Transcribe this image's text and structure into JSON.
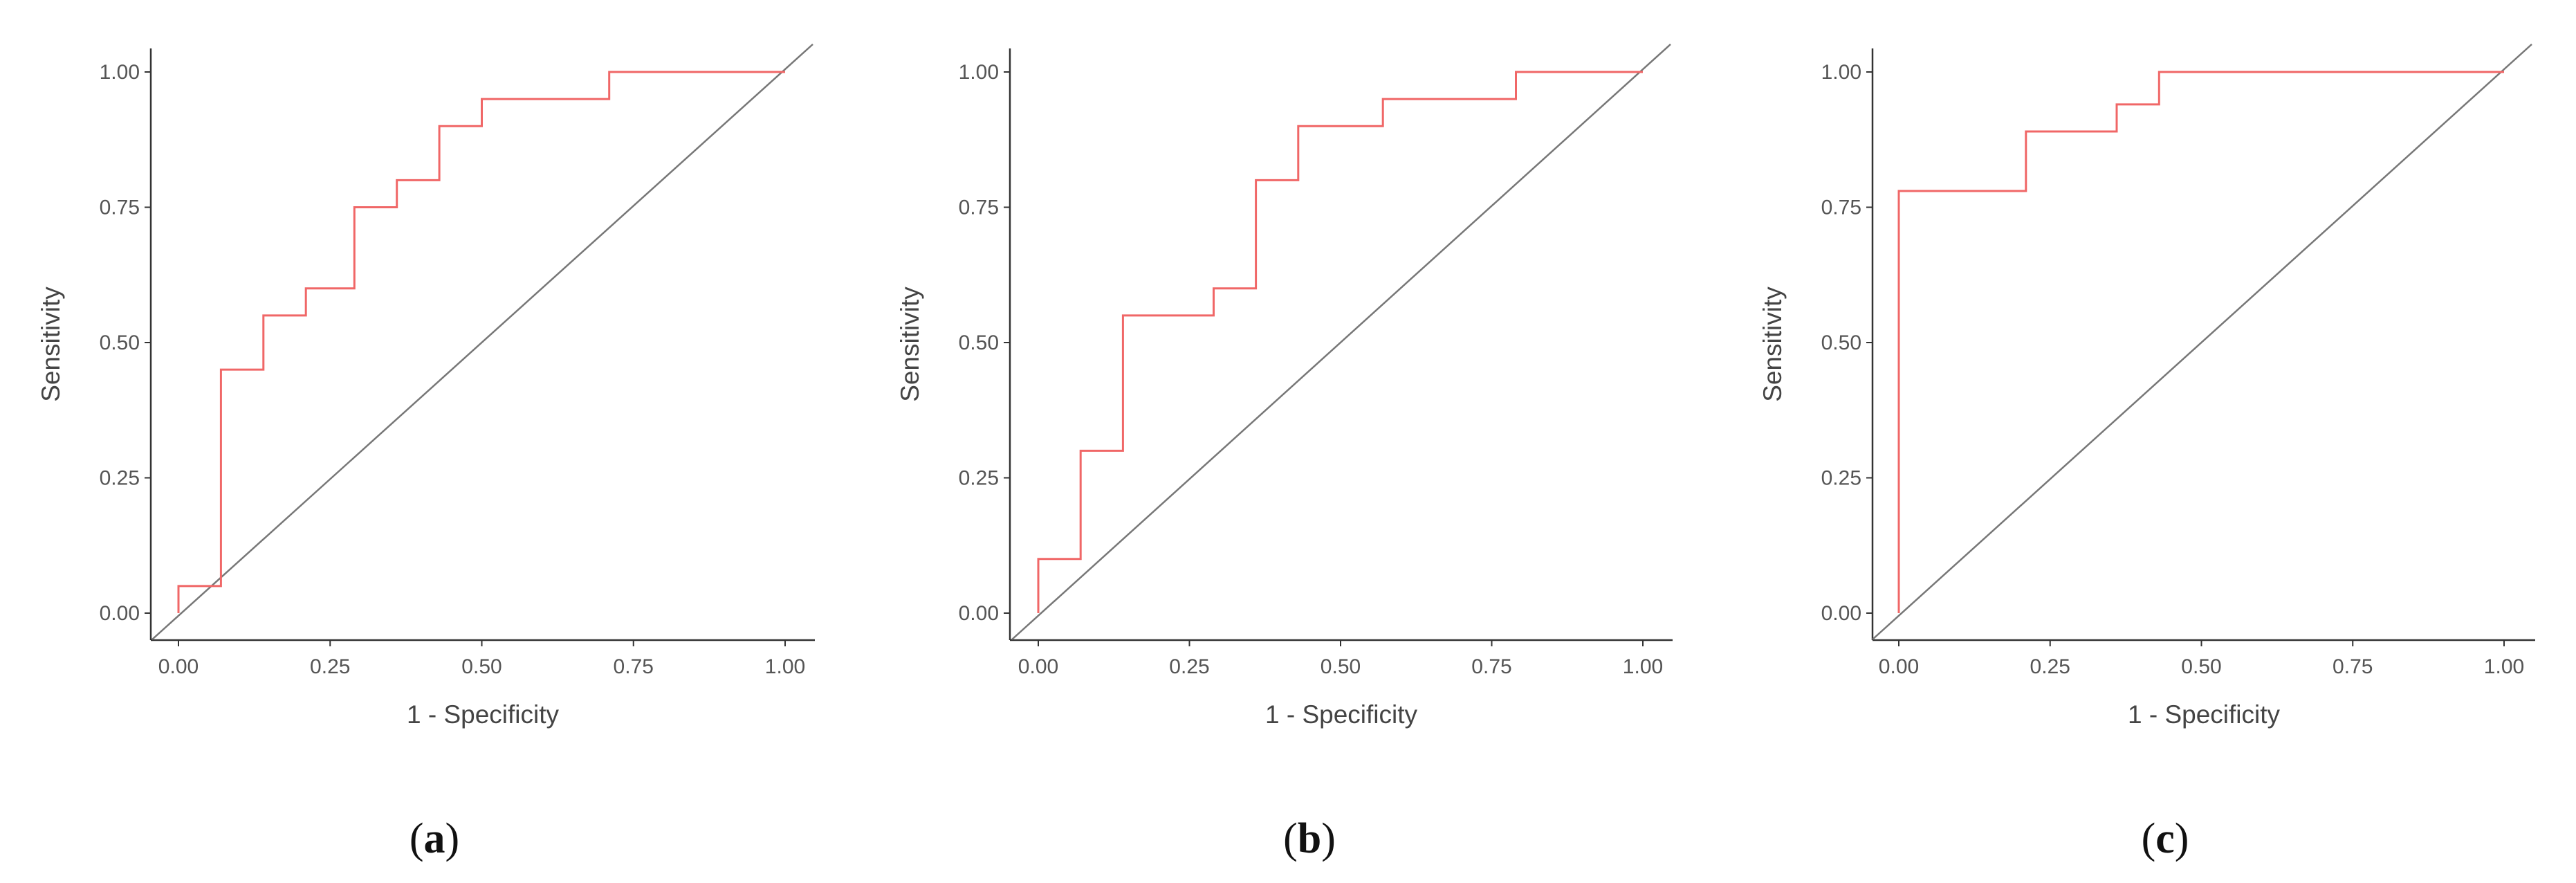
{
  "colors": {
    "roc": "#f06767",
    "diagonal": "#777777",
    "axis": "#333333"
  },
  "chart_data": [
    {
      "type": "line",
      "panel_label": "a",
      "xlabel": "1 - Specificity",
      "ylabel": "Sensitivity",
      "xlim": [
        0,
        1
      ],
      "ylim": [
        0,
        1
      ],
      "x_ticks": [
        "0.00",
        "0.25",
        "0.50",
        "0.75",
        "1.00"
      ],
      "y_ticks": [
        "0.00",
        "0.25",
        "0.50",
        "0.75",
        "1.00"
      ],
      "grid": false,
      "reference_line": [
        [
          0,
          0
        ],
        [
          1,
          1
        ]
      ],
      "series": [
        {
          "x": [
            0.0,
            0.0,
            0.07,
            0.07,
            0.14,
            0.14,
            0.21,
            0.21,
            0.29,
            0.29,
            0.36,
            0.36,
            0.43,
            0.43,
            0.5,
            0.5,
            0.71,
            0.71,
            1.0
          ],
          "y": [
            0.0,
            0.05,
            0.05,
            0.45,
            0.45,
            0.55,
            0.55,
            0.6,
            0.6,
            0.75,
            0.75,
            0.8,
            0.8,
            0.9,
            0.9,
            0.95,
            0.95,
            1.0,
            1.0
          ]
        }
      ]
    },
    {
      "type": "line",
      "panel_label": "b",
      "xlabel": "1 - Specificity",
      "ylabel": "Sensitivity",
      "xlim": [
        0,
        1
      ],
      "ylim": [
        0,
        1
      ],
      "x_ticks": [
        "0.00",
        "0.25",
        "0.50",
        "0.75",
        "1.00"
      ],
      "y_ticks": [
        "0.00",
        "0.25",
        "0.50",
        "0.75",
        "1.00"
      ],
      "grid": false,
      "reference_line": [
        [
          0,
          0
        ],
        [
          1,
          1
        ]
      ],
      "series": [
        {
          "x": [
            0.0,
            0.0,
            0.07,
            0.07,
            0.14,
            0.14,
            0.29,
            0.29,
            0.36,
            0.36,
            0.43,
            0.43,
            0.57,
            0.57,
            0.79,
            0.79,
            1.0
          ],
          "y": [
            0.0,
            0.1,
            0.1,
            0.3,
            0.3,
            0.55,
            0.55,
            0.6,
            0.6,
            0.8,
            0.8,
            0.9,
            0.9,
            0.95,
            0.95,
            1.0,
            1.0
          ]
        }
      ]
    },
    {
      "type": "line",
      "panel_label": "c",
      "xlabel": "1 - Specificity",
      "ylabel": "Sensitivity",
      "xlim": [
        0,
        1
      ],
      "ylim": [
        0,
        1
      ],
      "x_ticks": [
        "0.00",
        "0.25",
        "0.50",
        "0.75",
        "1.00"
      ],
      "y_ticks": [
        "0.00",
        "0.25",
        "0.50",
        "0.75",
        "1.00"
      ],
      "grid": false,
      "reference_line": [
        [
          0,
          0
        ],
        [
          1,
          1
        ]
      ],
      "series": [
        {
          "x": [
            0.0,
            0.0,
            0.21,
            0.21,
            0.36,
            0.36,
            0.43,
            0.43,
            1.0
          ],
          "y": [
            0.0,
            0.78,
            0.78,
            0.89,
            0.89,
            0.94,
            0.94,
            1.0,
            1.0
          ]
        }
      ]
    }
  ]
}
